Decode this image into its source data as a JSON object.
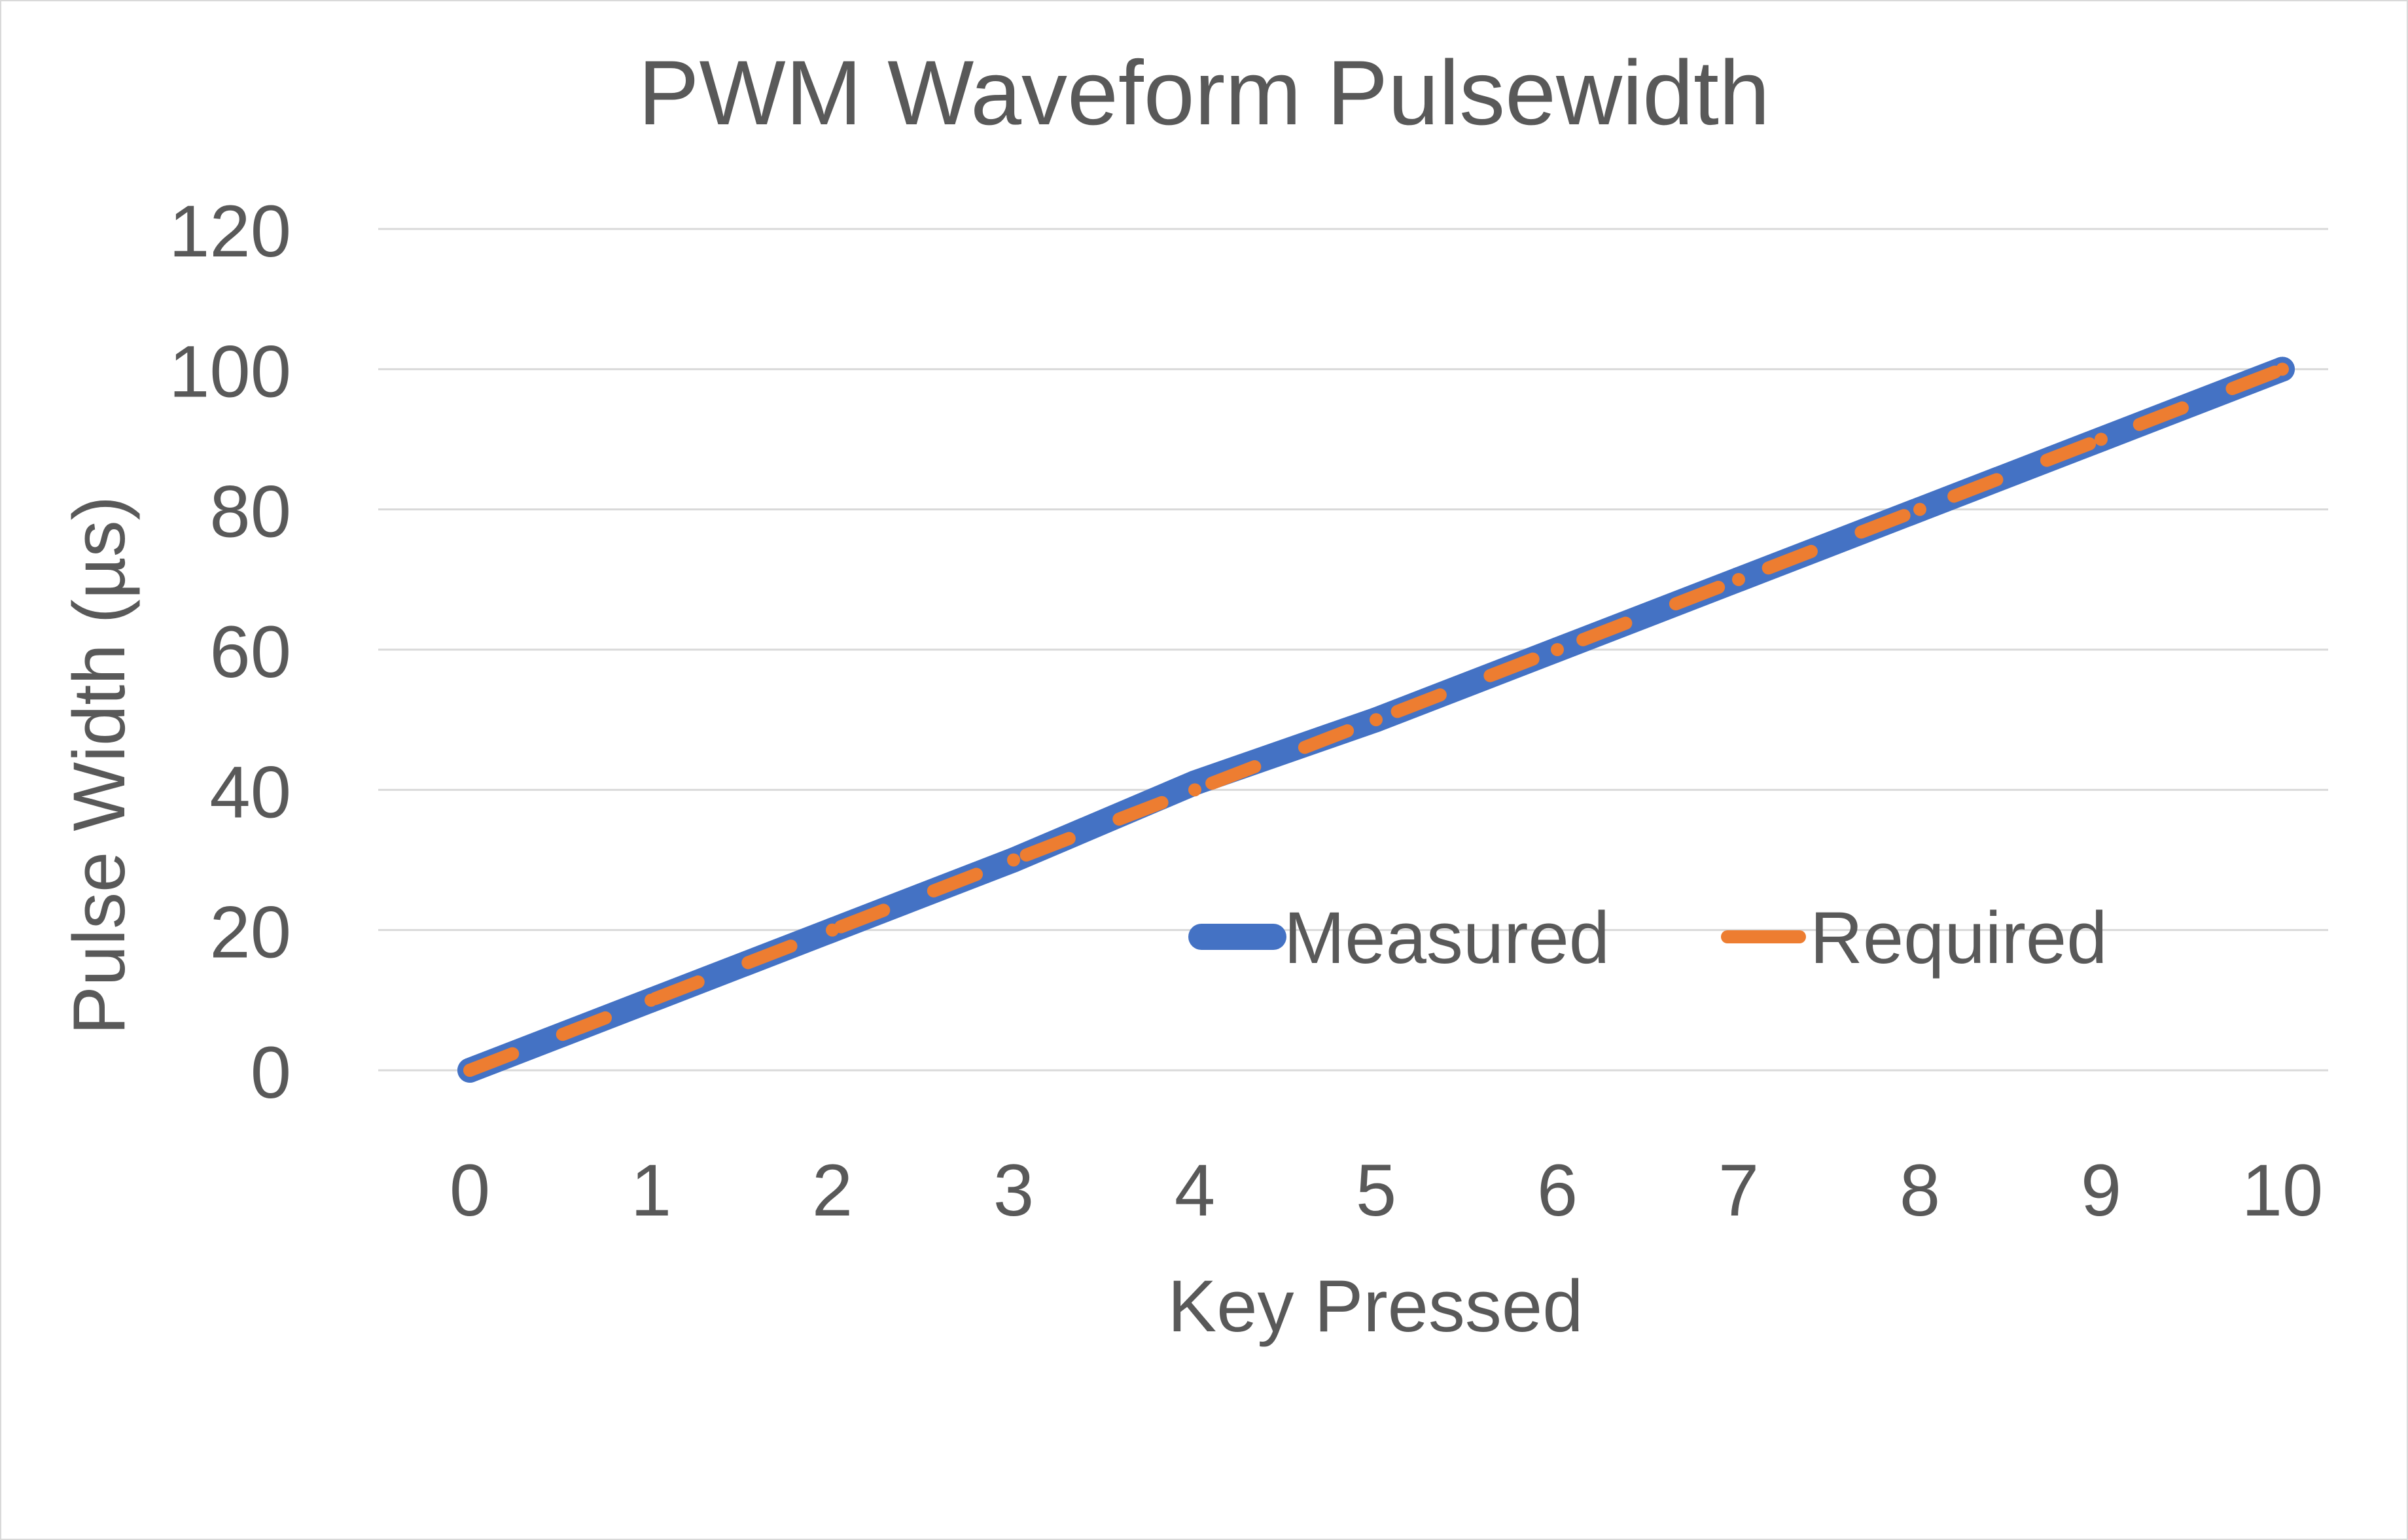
{
  "chart_data": {
    "type": "line",
    "title": "PWM Waveform Pulsewidth",
    "xlabel": "Key Pressed",
    "ylabel": "Pulse Width (µs)",
    "categories": [
      "0",
      "1",
      "2",
      "3",
      "4",
      "5",
      "6",
      "7",
      "8",
      "9",
      "10"
    ],
    "y_ticks": [
      "0",
      "20",
      "40",
      "60",
      "80",
      "100",
      "120"
    ],
    "ylim": [
      0,
      120
    ],
    "grid": true,
    "legend_position": "inside-bottom-right",
    "series": [
      {
        "name": "Measured",
        "color": "#4472C4",
        "style": "solid",
        "values": [
          0,
          10,
          20,
          30,
          41,
          50,
          60,
          70,
          80,
          90,
          100
        ]
      },
      {
        "name": "Required",
        "color": "#ED7D31",
        "style": "dashed",
        "values": [
          0,
          10,
          20,
          30,
          40,
          50,
          60,
          70,
          80,
          90,
          100
        ]
      }
    ]
  }
}
